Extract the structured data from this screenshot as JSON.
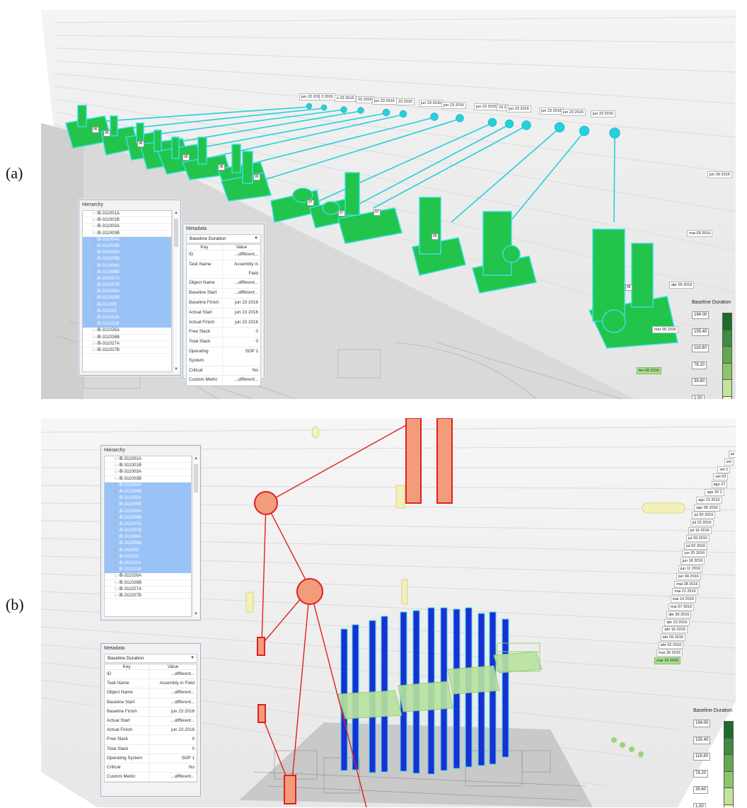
{
  "panel_a": {
    "label": "(a)",
    "hierarchy": {
      "title": "Hierarchy",
      "items": [
        "/B-311001A",
        "/B-311001B",
        "/B-311003A",
        "/B-311003B",
        "/B-311004A",
        "/B-311004B",
        "/B-311005A",
        "/B-311005B",
        "/B-311006A",
        "/B-311006B",
        "/B-311007A",
        "/B-311007B",
        "/B-311008A",
        "/B-311008B",
        "/B-311009",
        "/B-311010",
        "/B-311011A",
        "/B-311011B",
        "/B-311026A",
        "/B-311026B",
        "/B-311027A",
        "/B-311027B"
      ],
      "selected_range": [
        4,
        17
      ]
    },
    "metadata": {
      "title": "Metadata",
      "dropdown_value": "Baseline Duration",
      "header": {
        "key": "Key",
        "value": "Value"
      },
      "rows": [
        {
          "key": "ID",
          "value": "...different..."
        },
        {
          "key": "Task Name",
          "value": "Assembly in Field"
        },
        {
          "key": "Object Name",
          "value": "...different..."
        },
        {
          "key": "Baseline Start",
          "value": "...different..."
        },
        {
          "key": "Baseline Finish",
          "value": "jun 23 2016"
        },
        {
          "key": "Actual Start",
          "value": "jun 23 2016"
        },
        {
          "key": "Actual Finish",
          "value": "jun 23 2016"
        },
        {
          "key": "Free Slack",
          "value": "0"
        },
        {
          "key": "Total Slack",
          "value": "0"
        },
        {
          "key": "Operating System",
          "value": "SOP 1"
        },
        {
          "key": "Critical",
          "value": "No"
        },
        {
          "key": "Custom Metric",
          "value": "...different..."
        }
      ]
    },
    "legend": {
      "title": "Baseline Duration",
      "values": [
        "194.00",
        "155.40",
        "116.80",
        "78.20",
        "39.60",
        "1.00"
      ],
      "colors": [
        "#1f6b2e",
        "#3d8c3f",
        "#62a84f",
        "#8cc56a",
        "#c4e39b",
        "#fbf7c8"
      ]
    },
    "timeline_labels": [
      "jun 23 2016",
      "3 2016",
      "n 23 2016",
      "23 2016",
      "jun 23 2016",
      "23 2016",
      "jun 23 2016",
      "jun 23 2016",
      "jun 23 2016",
      "23 2",
      "jun 23 2016",
      "jun 23 2016",
      "jun 23 2016",
      "jun 23 2016",
      "jun 09 2016",
      "mai 09 2016",
      "abr 09 2016",
      "mar 09 2016",
      "fev 09 2016"
    ],
    "badges": [
      "96",
      "96",
      "96",
      "96",
      "96",
      "96",
      "97",
      "97",
      "97",
      "96",
      "96"
    ]
  },
  "panel_b": {
    "label": "(b)",
    "hierarchy": {
      "title": "Hierarchy",
      "items": [
        "/B-311001A",
        "/B-311001B",
        "/B-311003A",
        "/B-311003B",
        "/B-311004A",
        "/B-311004B",
        "/B-311005A",
        "/B-311005B",
        "/B-311006A",
        "/B-311006B",
        "/B-311007A",
        "/B-311007B",
        "/B-311008A",
        "/B-311008B",
        "/B-311009",
        "/B-311010",
        "/B-311011A",
        "/B-311011B",
        "/B-311026A",
        "/B-311026B",
        "/B-311027A",
        "/B-311027B"
      ],
      "selected_range": [
        4,
        17
      ]
    },
    "metadata": {
      "title": "Metadata",
      "dropdown_value": "Baseline Duration",
      "header": {
        "key": "Key",
        "value": "Value"
      },
      "rows": [
        {
          "key": "ID",
          "value": "...different..."
        },
        {
          "key": "Task Name",
          "value": "Assembly in Field"
        },
        {
          "key": "Object Name",
          "value": "...different..."
        },
        {
          "key": "Baseline Start",
          "value": "...different..."
        },
        {
          "key": "Baseline Finish",
          "value": "jun 23 2016"
        },
        {
          "key": "Actual Start",
          "value": "...different..."
        },
        {
          "key": "Actual Finish",
          "value": "jun 23 2016"
        },
        {
          "key": "Free Slack",
          "value": "0"
        },
        {
          "key": "Total Slack",
          "value": "0"
        },
        {
          "key": "Operating System",
          "value": "SOP 1"
        },
        {
          "key": "Critical",
          "value": "No"
        },
        {
          "key": "Custom Metric",
          "value": "...different..."
        }
      ]
    },
    "legend": {
      "title": "Baseline Duration",
      "values": [
        "194.00",
        "155.40",
        "116.80",
        "78.20",
        "39.60",
        "1.00"
      ],
      "colors": [
        "#1f6b2e",
        "#3d8c3f",
        "#62a84f",
        "#8cc56a",
        "#c4e39b",
        "#fbf7c8"
      ]
    },
    "timeline_labels": [
      "se",
      "set",
      "set 1",
      "set 03",
      "ago 27",
      "ago 20 2",
      "ago 13 2016",
      "ago 06 2016",
      "jul 30 2016",
      "jul 23 2016",
      "jul 16 2016",
      "jul 09 2016",
      "jul 02 2016",
      "jun 25 2016",
      "jun 18 2016",
      "jun 11 2016",
      "jun 04 2016",
      "mai 28 2016",
      "mai 21 2016",
      "mai 14 2016",
      "mai 07 2016",
      "abr 30 2016",
      "abr 23 2016",
      "abr 16 2016",
      "abr 09 2016",
      "abr 02 2016",
      "mar 26 2016",
      "mar 19 2016"
    ]
  }
}
